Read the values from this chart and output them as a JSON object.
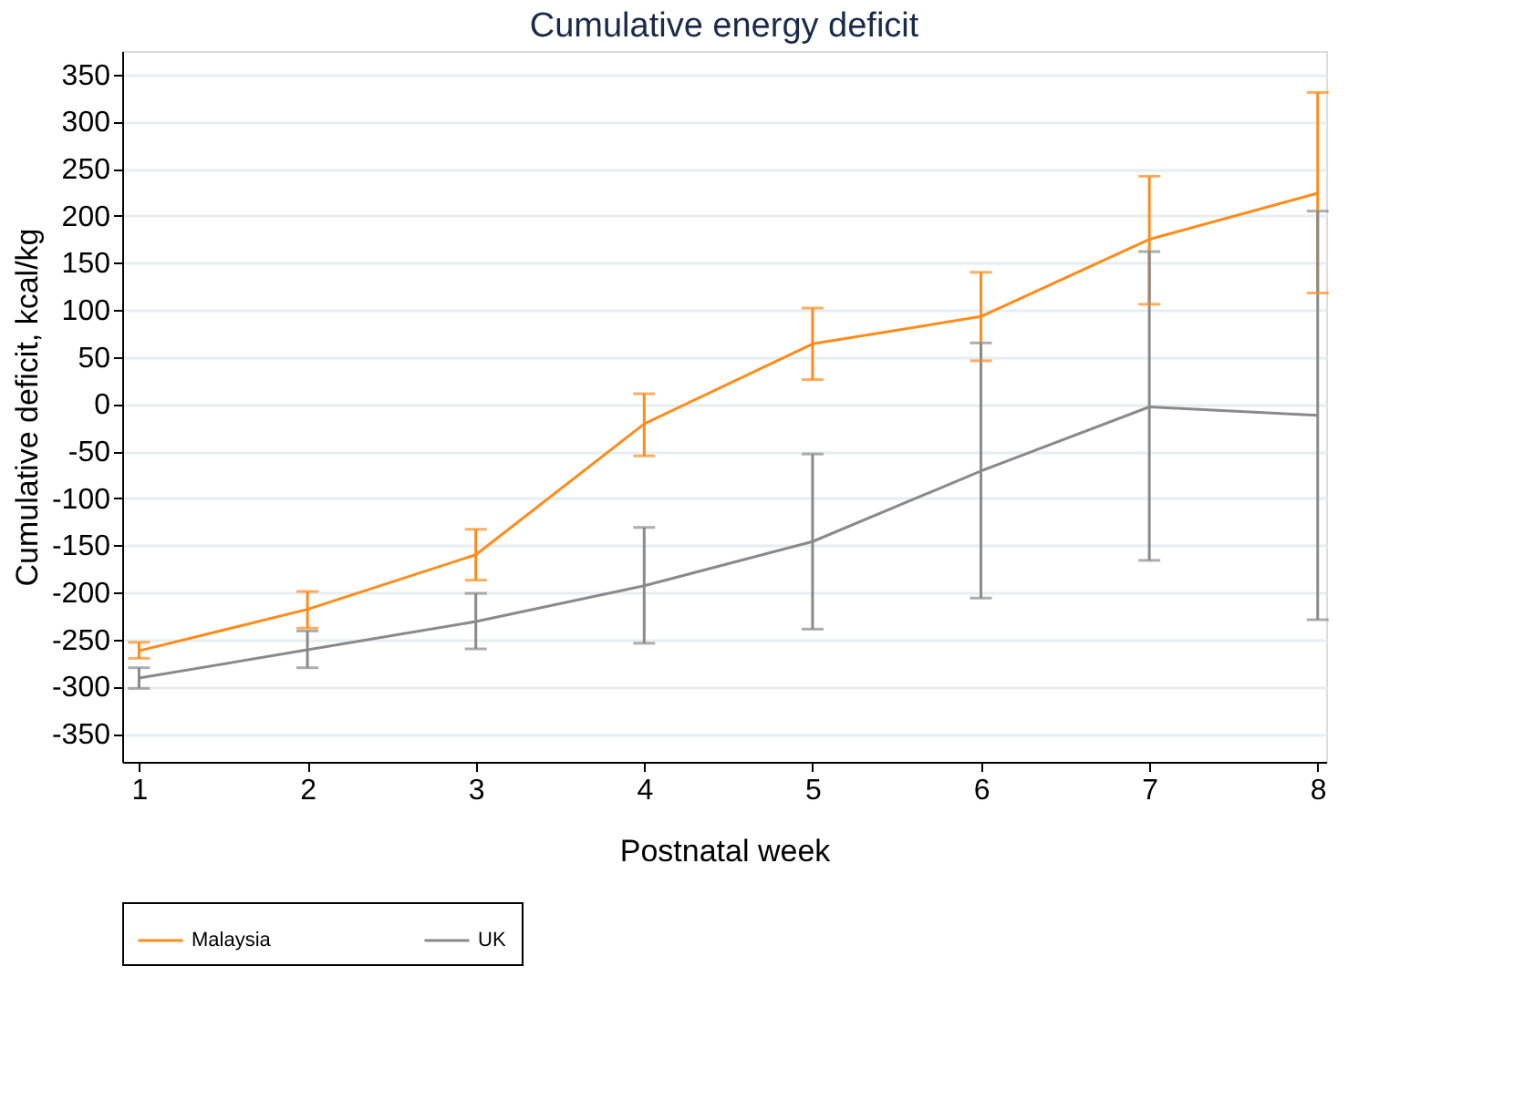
{
  "chart_data": {
    "type": "line",
    "title": "Cumulative energy deficit",
    "xlabel": "Postnatal week",
    "ylabel": "Cumulative deficit, kcal/kg",
    "x": [
      1,
      2,
      3,
      4,
      5,
      6,
      7,
      8
    ],
    "series": [
      {
        "name": "Malaysia",
        "color": "#ff8c1a",
        "values": [
          -262,
          -218,
          -160,
          -21,
          64,
          93,
          175,
          224
        ],
        "errors": [
          [
            -270,
            -253
          ],
          [
            -238,
            -199
          ],
          [
            -187,
            -133
          ],
          [
            -55,
            11
          ],
          [
            26,
            102
          ],
          [
            46,
            140
          ],
          [
            106,
            242
          ],
          [
            118,
            331
          ]
        ]
      },
      {
        "name": "UK",
        "color": "#8a8a8a",
        "values": [
          -291,
          -261,
          -231,
          -193,
          -146,
          -71,
          -3,
          -12
        ],
        "errors": [
          [
            -302,
            -280
          ],
          [
            -280,
            -241
          ],
          [
            -260,
            -201
          ],
          [
            -254,
            -131
          ],
          [
            -239,
            -53
          ],
          [
            -206,
            65
          ],
          [
            -166,
            162
          ],
          [
            -229,
            205
          ]
        ]
      }
    ],
    "xlim": [
      0.9,
      8.05
    ],
    "xticks": [
      1,
      2,
      3,
      4,
      5,
      6,
      7,
      8
    ],
    "ylim": [
      -380,
      375
    ],
    "yticks": [
      -350,
      -300,
      -250,
      -200,
      -150,
      -100,
      -50,
      0,
      50,
      100,
      150,
      200,
      250,
      300,
      350
    ],
    "grid": "y",
    "legend": "bottom",
    "marker": "none",
    "line_style": "solid"
  }
}
